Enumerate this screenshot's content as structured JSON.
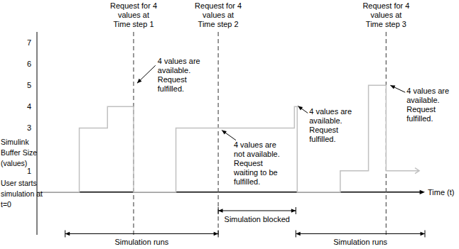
{
  "chart_data": {
    "type": "line",
    "line_style": "steps",
    "color": "#c0c0c0",
    "x_label": "Time (t)",
    "y_label": "Simulink\nBuffer Size\n(values)",
    "x": [
      0,
      6,
      10,
      13.7,
      19.7,
      36.5,
      36.9,
      43,
      47,
      49.5,
      54.2
    ],
    "values": [
      0,
      3,
      4,
      0,
      3,
      4,
      0,
      1,
      5,
      1,
      1
    ],
    "xlim": [
      0,
      55
    ],
    "ylim": [
      -2,
      7.5
    ],
    "yticks": [
      1,
      3,
      4,
      5,
      6,
      7
    ],
    "tick_labels": "y",
    "grid": false,
    "requests": [
      {
        "x": 13.7,
        "label": "Request for 4\nvalues at\nTime step 1"
      },
      {
        "x": 25.7,
        "label": "Request for 4\nvalues at\nTime step 2"
      },
      {
        "x": 49.5,
        "label": "Request for 4\nvalues at\nTime step 3"
      }
    ],
    "annotations": [
      "4 values are\navailable.\nRequest\nfulfilled.",
      "4 values are\nnot available.\nRequest\nwaiting to be\nfulfilled.",
      "4 values are\navailable.\nRequest\nfulfilled.",
      "4 values are\navailable.\nRequest\nfulfilled."
    ],
    "start_note": "User starts\nsimulation at\nt=0",
    "phases": [
      {
        "label": "Simulation runs",
        "start": 4,
        "end": 25.7
      },
      {
        "label": "Simulation blocked",
        "start": 25.7,
        "end": 36.7
      },
      {
        "label": "Simulation runs",
        "start": 36.7,
        "end": 55
      }
    ]
  }
}
